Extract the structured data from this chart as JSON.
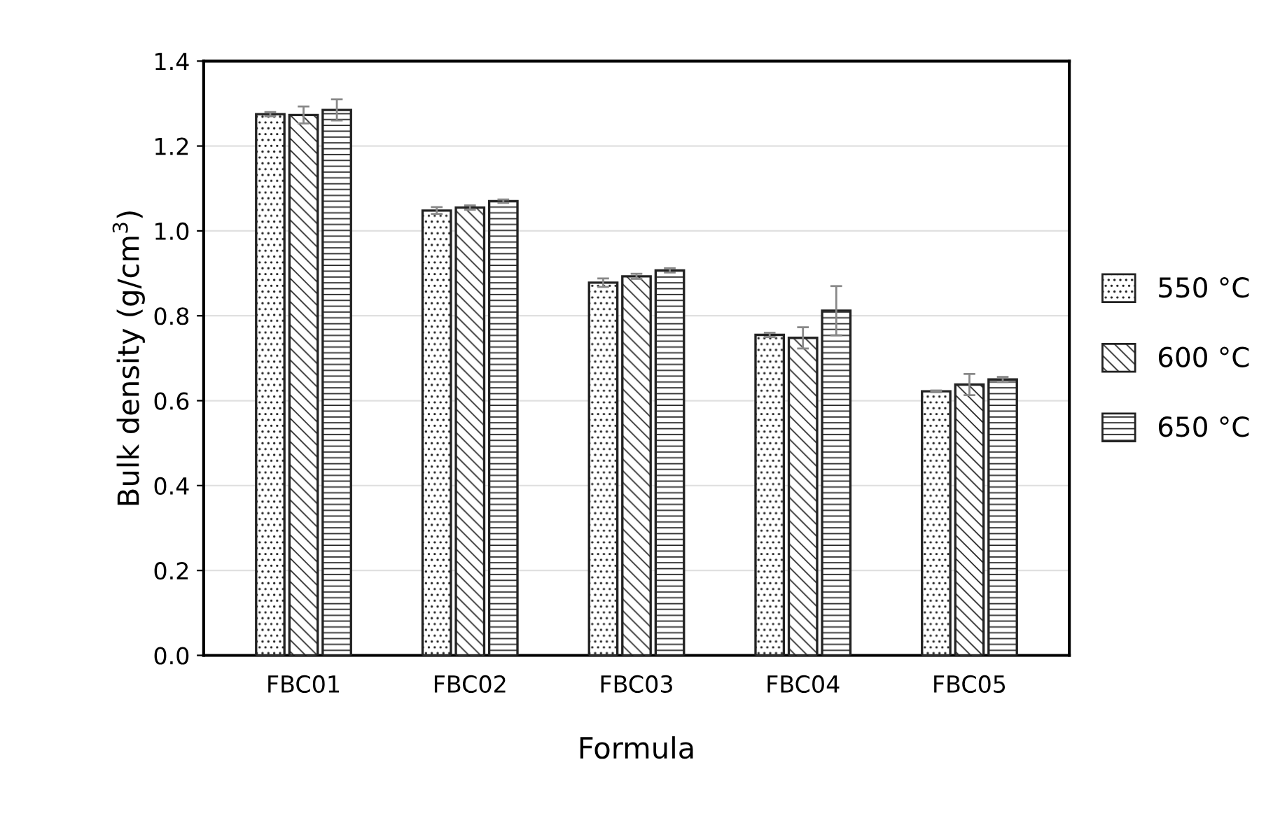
{
  "chart_data": {
    "type": "bar",
    "xlabel": "Formula",
    "ylabel": "Bulk density (g/cm$^{3}$)",
    "categories": [
      "FBC01",
      "FBC02",
      "FBC03",
      "FBC04",
      "FBC05"
    ],
    "series": [
      {
        "name": "550 °C",
        "color": "#222222",
        "values": [
          1.275,
          1.048,
          0.878,
          0.755,
          0.622
        ],
        "errors": [
          0.005,
          0.008,
          0.01,
          0.005,
          0.002
        ]
      },
      {
        "name": "600 °C",
        "color": "#222222",
        "values": [
          1.273,
          1.055,
          0.893,
          0.748,
          0.638
        ],
        "errors": [
          0.02,
          0.005,
          0.006,
          0.025,
          0.025
        ]
      },
      {
        "name": "650 °C",
        "color": "#222222",
        "values": [
          1.285,
          1.07,
          0.907,
          0.812,
          0.65
        ],
        "errors": [
          0.025,
          0.004,
          0.005,
          0.058,
          0.006
        ]
      }
    ],
    "ylim": [
      0,
      1.4
    ],
    "yticks": [
      {
        "value": 0,
        "label": "0.0"
      },
      {
        "value": 0.2,
        "label": "0.2"
      },
      {
        "value": 0.4,
        "label": "0.4"
      },
      {
        "value": 0.6,
        "label": "0.6"
      },
      {
        "value": 0.8,
        "label": "0.8"
      },
      {
        "value": 1.0,
        "label": "1.0"
      },
      {
        "value": 1.2,
        "label": "1.2"
      },
      {
        "value": 1.4,
        "label": "1.4"
      }
    ],
    "grid": "y",
    "legend": "right"
  }
}
